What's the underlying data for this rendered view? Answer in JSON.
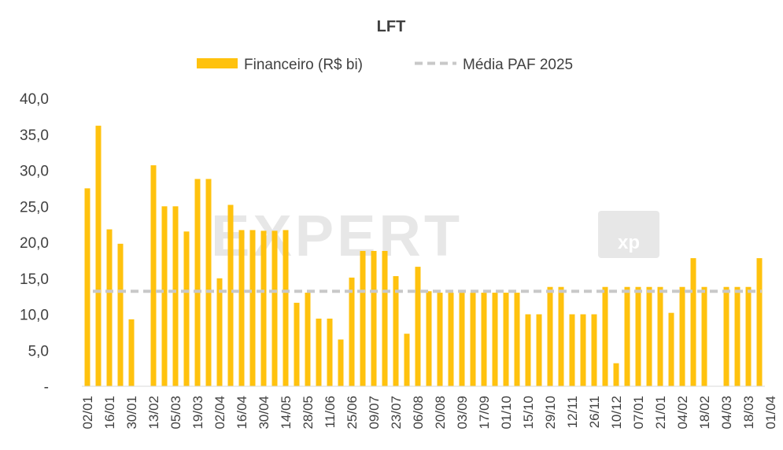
{
  "watermark": "EXPERT XP",
  "chart_data": {
    "type": "bar",
    "title": "LFT",
    "legend": {
      "position": "top"
    },
    "colors": {
      "bar": "#FFC20E",
      "average": "#C8C8C8",
      "text": "#404040",
      "axis": "#D9D9D9"
    },
    "ylim": [
      0,
      40
    ],
    "yticks": [
      {
        "value": 0,
        "label": "-"
      },
      {
        "value": 5,
        "label": "5,0"
      },
      {
        "value": 10,
        "label": "10,0"
      },
      {
        "value": 15,
        "label": "15,0"
      },
      {
        "value": 20,
        "label": "20,0"
      },
      {
        "value": 25,
        "label": "25,0"
      },
      {
        "value": 30,
        "label": "30,0"
      },
      {
        "value": 35,
        "label": "35,0"
      },
      {
        "value": 40,
        "label": "40,0"
      }
    ],
    "xtick_labels": [
      "02/01",
      "16/01",
      "30/01",
      "13/02",
      "05/03",
      "19/03",
      "02/04",
      "16/04",
      "30/04",
      "14/05",
      "28/05",
      "11/06",
      "25/06",
      "09/07",
      "23/07",
      "06/08",
      "20/08",
      "03/09",
      "17/09",
      "01/10",
      "15/10",
      "29/10",
      "12/11",
      "26/11",
      "10/12",
      "07/01",
      "21/01",
      "04/02",
      "18/02",
      "04/03",
      "18/03",
      "01/04"
    ],
    "series": [
      {
        "name": "Financeiro (R$ bi)",
        "values": [
          27.5,
          36.2,
          21.8,
          19.8,
          9.3,
          null,
          30.7,
          25.0,
          25.0,
          21.5,
          28.8,
          28.8,
          15.0,
          25.2,
          21.7,
          21.7,
          21.6,
          21.6,
          21.7,
          11.6,
          13.0,
          9.4,
          9.4,
          6.5,
          15.1,
          18.8,
          18.8,
          18.8,
          15.3,
          7.3,
          16.6,
          13.2,
          13.0,
          13.0,
          13.0,
          13.0,
          13.0,
          13.0,
          13.0,
          13.0,
          10.0,
          10.0,
          13.8,
          13.8,
          10.0,
          10.0,
          10.0,
          13.8,
          3.2,
          13.8,
          13.8,
          13.8,
          13.8,
          10.2,
          13.8,
          17.8,
          13.8,
          null,
          13.8,
          13.8,
          13.8,
          17.8
        ]
      },
      {
        "name": "Média PAF 2025",
        "type": "line",
        "value": 13.2
      }
    ]
  }
}
